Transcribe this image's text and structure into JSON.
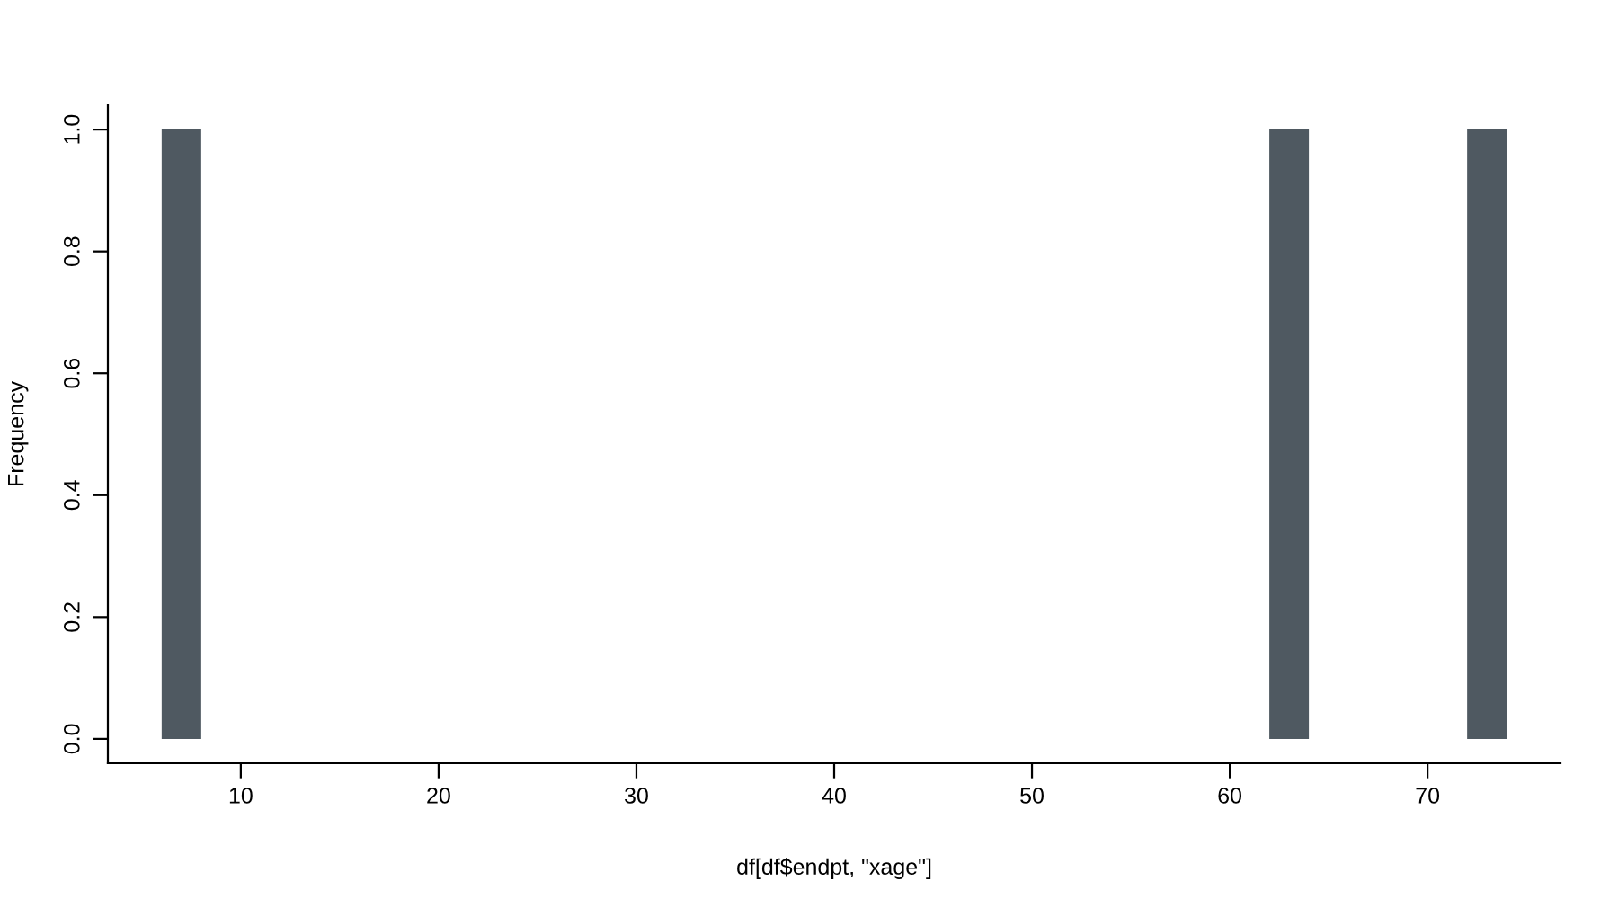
{
  "chart_data": {
    "type": "histogram",
    "xlabel": "df[df$endpt, \"xage\"]",
    "ylabel": "Frequency",
    "bins": [
      6,
      8,
      10,
      12,
      14,
      16,
      18,
      20,
      22,
      24,
      26,
      28,
      30,
      32,
      34,
      36,
      38,
      40,
      42,
      44,
      46,
      48,
      50,
      52,
      54,
      56,
      58,
      60,
      62,
      64,
      66,
      68,
      70,
      72,
      74
    ],
    "values": [
      1,
      0,
      0,
      0,
      0,
      0,
      0,
      0,
      0,
      0,
      0,
      0,
      0,
      0,
      0,
      0,
      0,
      0,
      0,
      0,
      0,
      0,
      0,
      0,
      0,
      0,
      0,
      0,
      1,
      0,
      0,
      0,
      0,
      1
    ],
    "color": "#4f5961",
    "xlim": [
      3.28,
      76.72
    ],
    "ylim": [
      -0.04,
      1.04
    ],
    "xticks": [
      10,
      20,
      30,
      40,
      50,
      60,
      70
    ],
    "yticks": [
      {
        "value": 0,
        "label": "0.0"
      },
      {
        "value": 0.2,
        "label": "0.2"
      },
      {
        "value": 0.4,
        "label": "0.4"
      },
      {
        "value": 0.6,
        "label": "0.6"
      },
      {
        "value": 0.8,
        "label": "0.8"
      },
      {
        "value": 1,
        "label": "1.0"
      }
    ],
    "grid": false
  }
}
